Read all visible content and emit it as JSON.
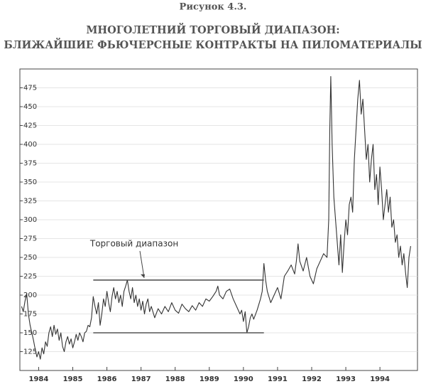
{
  "chart_data": {
    "type": "line",
    "figure_label": "Рисунок 4.3.",
    "title": "МНОГОЛЕТНИЙ ТОРГОВЫЙ ДИАПАЗОН:",
    "subtitle": "БЛИЖАЙШИЕ ФЬЮЧЕРСНЫЕ КОНТРАКТЫ НА ПИЛОМАТЕРИАЛЫ",
    "color": "#333333",
    "grid": true,
    "xlim": [
      1983.95,
      1995.6
    ],
    "xticks": [
      {
        "value": 1984.5,
        "label": "1984"
      },
      {
        "value": 1985.5,
        "label": "1985"
      },
      {
        "value": 1986.5,
        "label": "1986"
      },
      {
        "value": 1987.5,
        "label": "1987"
      },
      {
        "value": 1988.5,
        "label": "1988"
      },
      {
        "value": 1989.5,
        "label": "1989"
      },
      {
        "value": 1990.5,
        "label": "1990"
      },
      {
        "value": 1991.5,
        "label": "1991"
      },
      {
        "value": 1992.5,
        "label": "1992"
      },
      {
        "value": 1993.5,
        "label": "1993"
      },
      {
        "value": 1994.5,
        "label": "1994"
      }
    ],
    "ylim": [
      100,
      500
    ],
    "yticks": [
      125,
      150,
      175,
      200,
      225,
      250,
      275,
      300,
      325,
      350,
      375,
      400,
      425,
      450,
      475
    ],
    "x": [
      1984.0,
      1984.05,
      1984.1,
      1984.15,
      1984.2,
      1984.25,
      1984.3,
      1984.35,
      1984.4,
      1984.45,
      1984.5,
      1984.55,
      1984.6,
      1984.65,
      1984.7,
      1984.75,
      1984.8,
      1984.85,
      1984.9,
      1984.95,
      1985.0,
      1985.05,
      1985.1,
      1985.15,
      1985.2,
      1985.25,
      1985.3,
      1985.35,
      1985.4,
      1985.45,
      1985.5,
      1985.55,
      1985.6,
      1985.65,
      1985.7,
      1985.75,
      1985.8,
      1985.85,
      1985.9,
      1985.95,
      1986.0,
      1986.05,
      1986.1,
      1986.15,
      1986.2,
      1986.25,
      1986.3,
      1986.35,
      1986.4,
      1986.45,
      1986.5,
      1986.55,
      1986.6,
      1986.65,
      1986.7,
      1986.75,
      1986.8,
      1986.85,
      1986.9,
      1986.95,
      1987.0,
      1987.05,
      1987.1,
      1987.15,
      1987.2,
      1987.25,
      1987.3,
      1987.35,
      1987.4,
      1987.45,
      1987.5,
      1987.55,
      1987.6,
      1987.65,
      1987.7,
      1987.75,
      1987.8,
      1987.9,
      1988.0,
      1988.1,
      1988.2,
      1988.3,
      1988.4,
      1988.5,
      1988.6,
      1988.7,
      1988.8,
      1988.9,
      1989.0,
      1989.1,
      1989.2,
      1989.3,
      1989.4,
      1989.5,
      1989.6,
      1989.7,
      1989.75,
      1989.8,
      1989.9,
      1990.0,
      1990.1,
      1990.2,
      1990.3,
      1990.4,
      1990.45,
      1990.5,
      1990.55,
      1990.6,
      1990.65,
      1990.7,
      1990.75,
      1990.8,
      1990.9,
      1991.0,
      1991.05,
      1991.1,
      1991.15,
      1991.2,
      1991.3,
      1991.4,
      1991.5,
      1991.6,
      1991.7,
      1991.8,
      1991.9,
      1992.0,
      1992.05,
      1992.1,
      1992.15,
      1992.25,
      1992.35,
      1992.45,
      1992.55,
      1992.65,
      1992.75,
      1992.85,
      1992.95,
      1993.0,
      1993.03,
      1993.06,
      1993.1,
      1993.15,
      1993.2,
      1993.25,
      1993.3,
      1993.35,
      1993.4,
      1993.45,
      1993.5,
      1993.55,
      1993.6,
      1993.65,
      1993.7,
      1993.75,
      1993.8,
      1993.85,
      1993.9,
      1993.95,
      1994.0,
      1994.05,
      1994.1,
      1994.15,
      1994.2,
      1994.25,
      1994.3,
      1994.35,
      1994.4,
      1994.45,
      1994.5,
      1994.55,
      1994.6,
      1994.65,
      1994.7,
      1994.75,
      1994.8,
      1994.85,
      1994.9,
      1994.95,
      1995.0,
      1995.05,
      1995.1,
      1995.15,
      1995.2,
      1995.25,
      1995.3,
      1995.35,
      1995.4
    ],
    "values": [
      185,
      178,
      192,
      202,
      175,
      160,
      150,
      140,
      128,
      118,
      125,
      115,
      130,
      122,
      138,
      132,
      150,
      158,
      145,
      160,
      148,
      155,
      140,
      150,
      132,
      125,
      138,
      145,
      135,
      142,
      130,
      138,
      148,
      140,
      150,
      145,
      138,
      150,
      152,
      160,
      158,
      170,
      198,
      185,
      175,
      190,
      160,
      175,
      195,
      185,
      205,
      190,
      178,
      198,
      210,
      195,
      205,
      190,
      200,
      185,
      205,
      212,
      220,
      205,
      195,
      210,
      190,
      200,
      185,
      195,
      180,
      192,
      175,
      188,
      195,
      178,
      185,
      170,
      182,
      175,
      185,
      178,
      190,
      180,
      176,
      188,
      182,
      178,
      186,
      180,
      190,
      185,
      195,
      192,
      198,
      205,
      212,
      200,
      195,
      205,
      208,
      195,
      185,
      175,
      180,
      165,
      178,
      150,
      158,
      170,
      175,
      168,
      180,
      195,
      205,
      242,
      220,
      205,
      190,
      200,
      210,
      195,
      225,
      232,
      240,
      228,
      245,
      268,
      245,
      232,
      250,
      225,
      215,
      235,
      245,
      255,
      250,
      300,
      420,
      490,
      400,
      330,
      300,
      270,
      240,
      280,
      230,
      270,
      300,
      280,
      320,
      330,
      310,
      380,
      420,
      460,
      485,
      440,
      460,
      420,
      380,
      400,
      350,
      380,
      400,
      340,
      360,
      320,
      370,
      340,
      300,
      320,
      340,
      310,
      330,
      290,
      300,
      270,
      280,
      250,
      265,
      240,
      255,
      230,
      210,
      250,
      265
    ],
    "reference_lines": [
      {
        "y": 220,
        "x": [
          1986.1,
          1991.1
        ]
      },
      {
        "y": 150,
        "x": [
          1986.1,
          1991.1
        ]
      }
    ],
    "annotation": {
      "text": "Торговый диапазон",
      "x": 1987.3,
      "y": 268
    }
  }
}
